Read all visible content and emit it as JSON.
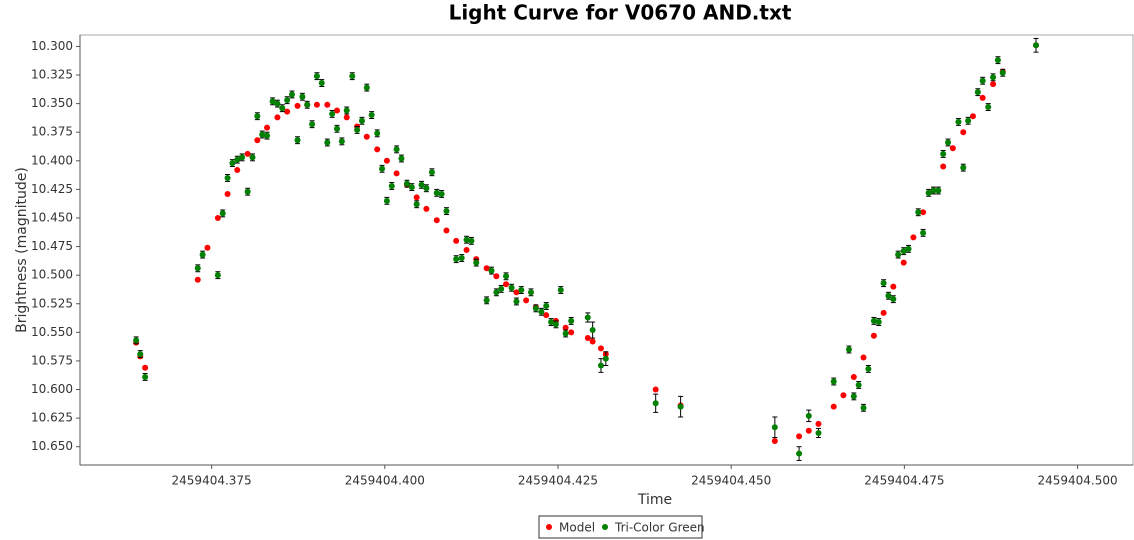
{
  "chart_data": {
    "type": "scatter",
    "title": "Light Curve for V0670 AND.txt",
    "x_label": "Time",
    "y_label": "Brightness (magnitude)",
    "xlim": [
      2459404.356,
      2459404.508
    ],
    "ylim": [
      10.29,
      10.666
    ],
    "y_inverted": true,
    "grid": false,
    "legend": "bottom",
    "xticks": [
      2459404.375,
      {
        "value": 2459404.4,
        "label": "2459404.400"
      },
      2459404.425,
      {
        "value": 2459404.45,
        "label": "2459404.450"
      },
      2459404.475,
      {
        "value": 2459404.5,
        "label": "2459404.500"
      }
    ],
    "yticks": [
      {
        "value": 10.3,
        "label": "10.300"
      },
      10.325,
      {
        "value": 10.35,
        "label": "10.350"
      },
      10.375,
      {
        "value": 10.4,
        "label": "10.400"
      },
      10.425,
      {
        "value": 10.45,
        "label": "10.450"
      },
      10.475,
      {
        "value": 10.5,
        "label": "10.500"
      },
      10.525,
      {
        "value": 10.55,
        "label": "10.550"
      },
      10.575,
      {
        "value": 10.6,
        "label": "10.600"
      },
      10.625,
      {
        "value": 10.65,
        "label": "10.650"
      }
    ],
    "series": [
      {
        "name": "Model",
        "color": "#ff0000",
        "x": [
          2459404.3641,
          2459404.3647,
          2459404.3654,
          2459404.373,
          2459404.3744,
          2459404.3759,
          2459404.3773,
          2459404.3787,
          2459404.3802,
          2459404.3816,
          2459404.383,
          2459404.3845,
          2459404.3859,
          2459404.3874,
          2459404.3888,
          2459404.3902,
          2459404.3917,
          2459404.3931,
          2459404.3945,
          2459404.396,
          2459404.3974,
          2459404.3989,
          2459404.4003,
          2459404.4017,
          2459404.4032,
          2459404.4046,
          2459404.406,
          2459404.4075,
          2459404.4089,
          2459404.4103,
          2459404.4118,
          2459404.4132,
          2459404.4147,
          2459404.4161,
          2459404.4175,
          2459404.419,
          2459404.4204,
          2459404.4218,
          2459404.4233,
          2459404.4247,
          2459404.4261,
          2459404.4269,
          2459404.4293,
          2459404.43,
          2459404.4312,
          2459404.4319,
          2459404.4391,
          2459404.4427,
          2459404.4563,
          2459404.4598,
          2459404.4612,
          2459404.4626,
          2459404.4648,
          2459404.4662,
          2459404.4677,
          2459404.4691,
          2459404.4706,
          2459404.472,
          2459404.4734,
          2459404.4749,
          2459404.4763,
          2459404.4777,
          2459404.4792,
          2459404.4806,
          2459404.482,
          2459404.4835,
          2459404.4849,
          2459404.4863,
          2459404.4878,
          2459404.4892,
          2459404.494
        ],
        "values": [
          10.559,
          10.571,
          10.581,
          10.504,
          10.476,
          10.45,
          10.429,
          10.408,
          10.394,
          10.382,
          10.371,
          10.362,
          10.357,
          10.352,
          10.351,
          10.351,
          10.351,
          10.356,
          10.362,
          10.37,
          10.379,
          10.39,
          10.4,
          10.411,
          10.421,
          10.432,
          10.442,
          10.452,
          10.461,
          10.47,
          10.478,
          10.486,
          10.494,
          10.501,
          10.508,
          10.515,
          10.522,
          10.528,
          10.535,
          10.54,
          10.546,
          10.55,
          10.555,
          10.558,
          10.564,
          10.569,
          10.6,
          10.614,
          10.645,
          10.641,
          10.636,
          10.63,
          10.615,
          10.605,
          10.589,
          10.572,
          10.553,
          10.533,
          10.51,
          10.489,
          10.467,
          10.445,
          10.426,
          10.405,
          10.389,
          10.375,
          10.361,
          10.345,
          10.333,
          10.322,
          10.299
        ]
      },
      {
        "name": "Tri-Color Green",
        "color": "#008000",
        "x": [
          2459404.3641,
          2459404.3647,
          2459404.3654,
          2459404.373,
          2459404.3737,
          2459404.3759,
          2459404.3766,
          2459404.3773,
          2459404.378,
          2459404.3787,
          2459404.3794,
          2459404.3802,
          2459404.3809,
          2459404.3816,
          2459404.3823,
          2459404.383,
          2459404.3838,
          2459404.3845,
          2459404.3852,
          2459404.3859,
          2459404.3866,
          2459404.3874,
          2459404.3881,
          2459404.3888,
          2459404.3895,
          2459404.3902,
          2459404.3909,
          2459404.3917,
          2459404.3924,
          2459404.3931,
          2459404.3938,
          2459404.3945,
          2459404.3953,
          2459404.396,
          2459404.3967,
          2459404.3974,
          2459404.3981,
          2459404.3989,
          2459404.3996,
          2459404.4003,
          2459404.401,
          2459404.4017,
          2459404.4024,
          2459404.4032,
          2459404.4039,
          2459404.4046,
          2459404.4053,
          2459404.406,
          2459404.4068,
          2459404.4075,
          2459404.4082,
          2459404.4089,
          2459404.4103,
          2459404.4111,
          2459404.4118,
          2459404.4125,
          2459404.4132,
          2459404.4147,
          2459404.4154,
          2459404.4161,
          2459404.4168,
          2459404.4175,
          2459404.4183,
          2459404.419,
          2459404.4197,
          2459404.4211,
          2459404.4218,
          2459404.4226,
          2459404.4233,
          2459404.424,
          2459404.4247,
          2459404.4254,
          2459404.4261,
          2459404.4269,
          2459404.4293,
          2459404.43,
          2459404.4312,
          2459404.4319,
          2459404.4391,
          2459404.4427,
          2459404.4563,
          2459404.4598,
          2459404.4612,
          2459404.4626,
          2459404.4648,
          2459404.467,
          2459404.4677,
          2459404.4684,
          2459404.4691,
          2459404.4698,
          2459404.4706,
          2459404.4713,
          2459404.472,
          2459404.4727,
          2459404.4734,
          2459404.4741,
          2459404.4749,
          2459404.4756,
          2459404.477,
          2459404.4777,
          2459404.4785,
          2459404.4792,
          2459404.4799,
          2459404.4806,
          2459404.4813,
          2459404.4828,
          2459404.4835,
          2459404.4842,
          2459404.4856,
          2459404.4863,
          2459404.4871,
          2459404.4878,
          2459404.4885,
          2459404.4892,
          2459404.494
        ],
        "values": [
          10.557,
          10.569,
          10.589,
          10.494,
          10.482,
          10.5,
          10.446,
          10.415,
          10.402,
          10.399,
          10.397,
          10.427,
          10.397,
          10.361,
          10.377,
          10.378,
          10.348,
          10.35,
          10.354,
          10.347,
          10.342,
          10.382,
          10.344,
          10.351,
          10.368,
          10.326,
          10.332,
          10.384,
          10.359,
          10.372,
          10.383,
          10.356,
          10.326,
          10.373,
          10.365,
          10.336,
          10.36,
          10.376,
          10.407,
          10.435,
          10.422,
          10.39,
          10.398,
          10.42,
          10.423,
          10.438,
          10.421,
          10.424,
          10.41,
          10.428,
          10.429,
          10.444,
          10.486,
          10.485,
          10.469,
          10.47,
          10.489,
          10.522,
          10.496,
          10.515,
          10.512,
          10.501,
          10.511,
          10.523,
          10.513,
          10.515,
          10.529,
          10.532,
          10.527,
          10.541,
          10.543,
          10.513,
          10.551,
          10.54,
          10.537,
          10.548,
          10.579,
          10.573,
          10.612,
          10.615,
          10.633,
          10.656,
          10.623,
          10.638,
          10.593,
          10.565,
          10.606,
          10.596,
          10.616,
          10.582,
          10.54,
          10.541,
          10.507,
          10.518,
          10.521,
          10.482,
          10.479,
          10.477,
          10.445,
          10.463,
          10.428,
          10.426,
          10.426,
          10.394,
          10.384,
          10.366,
          10.406,
          10.365,
          10.34,
          10.33,
          10.353,
          10.327,
          10.312,
          10.323,
          10.299
        ],
        "errors": [
          0.003,
          0.003,
          0.003,
          0.003,
          0.003,
          0.003,
          0.003,
          0.003,
          0.003,
          0.003,
          0.003,
          0.003,
          0.003,
          0.003,
          0.003,
          0.003,
          0.003,
          0.003,
          0.003,
          0.003,
          0.003,
          0.003,
          0.003,
          0.003,
          0.003,
          0.003,
          0.003,
          0.003,
          0.003,
          0.003,
          0.003,
          0.003,
          0.003,
          0.003,
          0.003,
          0.003,
          0.003,
          0.003,
          0.003,
          0.003,
          0.003,
          0.003,
          0.003,
          0.003,
          0.003,
          0.003,
          0.003,
          0.003,
          0.003,
          0.003,
          0.003,
          0.003,
          0.003,
          0.003,
          0.003,
          0.003,
          0.003,
          0.003,
          0.003,
          0.003,
          0.003,
          0.003,
          0.003,
          0.003,
          0.003,
          0.003,
          0.003,
          0.003,
          0.003,
          0.003,
          0.003,
          0.003,
          0.003,
          0.003,
          0.004,
          0.007,
          0.006,
          0.006,
          0.008,
          0.009,
          0.009,
          0.006,
          0.005,
          0.004,
          0.003,
          0.003,
          0.003,
          0.003,
          0.003,
          0.003,
          0.003,
          0.003,
          0.003,
          0.003,
          0.003,
          0.003,
          0.003,
          0.003,
          0.003,
          0.003,
          0.003,
          0.003,
          0.003,
          0.003,
          0.003,
          0.003,
          0.003,
          0.003,
          0.003,
          0.003,
          0.003,
          0.003,
          0.003,
          0.003,
          0.006
        ]
      }
    ]
  }
}
